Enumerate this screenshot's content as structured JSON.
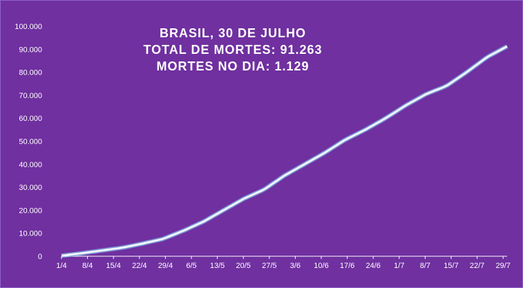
{
  "chart_data": {
    "type": "area",
    "title_lines": [
      "BRASIL,  30 DE JULHO",
      "TOTAL DE MORTES: 91.263",
      "MORTES NO DIA: 1.129"
    ],
    "xlabel": "",
    "ylabel": "",
    "ylim": [
      0,
      100000
    ],
    "yticks": [
      0,
      10000,
      20000,
      30000,
      40000,
      50000,
      60000,
      70000,
      80000,
      90000,
      100000
    ],
    "ytick_labels": [
      "0",
      "10.000",
      "20.000",
      "30.000",
      "40.000",
      "50.000",
      "60.000",
      "70.000",
      "80.000",
      "90.000",
      "100.000"
    ],
    "xtick_labels": [
      "1/4",
      "8/4",
      "15/4",
      "22/4",
      "29/4",
      "6/5",
      "13/5",
      "20/5",
      "27/5",
      "3/6",
      "10/6",
      "17/6",
      "24/6",
      "1/7",
      "8/7",
      "15/7",
      "22/7",
      "29/7"
    ],
    "grid": false,
    "legend": "none",
    "colors": {
      "background": "#7030a0",
      "line": "#ffffff",
      "glow": "#8fd3f4",
      "fill": "#ffffff"
    },
    "series": [
      {
        "x_start": "1/4",
        "x_end": "30/7",
        "values": [
          241,
          1300,
          2500,
          3700,
          5500,
          7500,
          11000,
          15000,
          20000,
          25000,
          29000,
          35000,
          40000,
          45000,
          50600,
          55000,
          60000,
          65600,
          70500,
          74000,
          80000,
          86500,
          91263
        ]
      }
    ]
  }
}
